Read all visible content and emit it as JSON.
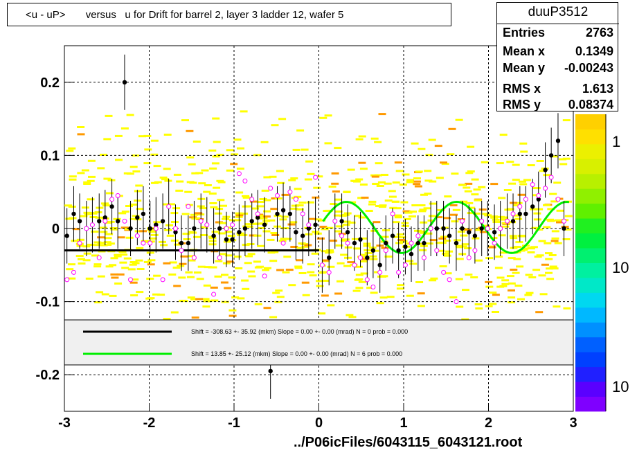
{
  "title": "<u - uP>       versus   u for Drift for barrel 2, layer 3 ladder 12, wafer 5",
  "stats": {
    "name": "duuP3512",
    "rows": [
      {
        "label": "Entries",
        "value": "2763"
      },
      {
        "label": "Mean x",
        "value": "0.1349"
      },
      {
        "label": "Mean y",
        "value": "-0.00243"
      },
      {
        "label": "RMS x",
        "value": "1.613"
      },
      {
        "label": "RMS y",
        "value": "0.08374"
      }
    ]
  },
  "footer": "../P06icFiles/6043115_6043121.root",
  "colorbar_labels": [
    "1",
    "10",
    "10"
  ],
  "legend": [
    {
      "text": "Shift =  -308.63 +- 35.92 (mkm) Slope =     0.00 +- 0.00 (mrad)  N = 0 prob = 0.000",
      "color": "#000000"
    },
    {
      "text": "Shift =    13.85 +- 25.12 (mkm) Slope =     0.00 +- 0.00 (mrad)  N = 6 prob = 0.000",
      "color": "#00ee00"
    }
  ],
  "chart_data": {
    "type": "scatter",
    "title": "<u - uP>       versus   u for Drift for barrel 2, layer 3 ladder 12, wafer 5",
    "xlabel": "",
    "ylabel": "",
    "xlim": [
      -3,
      3
    ],
    "ylim": [
      -0.25,
      0.25
    ],
    "x_ticks": [
      -3,
      -2,
      -1,
      0,
      1,
      2,
      3
    ],
    "y_ticks": [
      -0.2,
      -0.1,
      0,
      0.1,
      0.2
    ],
    "grid": true,
    "colors": {
      "heat_low": "#ffff00",
      "heat_mid": "#ff9900",
      "mean": "#000000",
      "median": "#ff00ff",
      "fit": "#00ee00",
      "fit_flat": "#000000"
    },
    "series": [
      {
        "kind": "mean",
        "x": [
          -2.97,
          -2.89,
          -2.82,
          -2.74,
          -2.67,
          -2.59,
          -2.52,
          -2.44,
          -2.37,
          -2.29,
          -2.22,
          -2.14,
          -2.07,
          -1.99,
          -1.92,
          -1.84,
          -1.77,
          -1.69,
          -1.62,
          -1.54,
          -1.47,
          -1.39,
          -1.32,
          -1.24,
          -1.17,
          -1.09,
          -1.02,
          -0.94,
          -0.87,
          -0.79,
          -0.72,
          -0.64,
          -0.57,
          -0.49,
          -0.42,
          -0.34,
          -0.27,
          -0.19,
          -0.12,
          -0.04,
          0.04,
          0.12,
          0.19,
          0.27,
          0.34,
          0.42,
          0.49,
          0.57,
          0.64,
          0.72,
          0.79,
          0.87,
          0.94,
          1.02,
          1.09,
          1.17,
          1.24,
          1.32,
          1.39,
          1.47,
          1.54,
          1.62,
          1.69,
          1.77,
          1.84,
          1.92,
          1.99,
          2.07,
          2.14,
          2.22,
          2.29,
          2.37,
          2.44,
          2.52,
          2.59,
          2.67,
          2.74,
          2.82,
          2.89
        ],
        "y": [
          -0.01,
          0.02,
          0.01,
          0.0,
          0.005,
          0.01,
          0.015,
          0.03,
          0.01,
          0.2,
          0.0,
          0.015,
          0.02,
          0.0,
          0.005,
          0.01,
          0.03,
          -0.005,
          -0.02,
          -0.02,
          0.0,
          0.01,
          0.005,
          -0.01,
          0.0,
          -0.015,
          -0.015,
          -0.005,
          0.0,
          0.01,
          0.015,
          0.005,
          -0.195,
          0.02,
          0.025,
          0.02,
          -0.005,
          -0.01,
          0.0,
          0.005,
          -0.05,
          -0.04,
          0.01,
          0.01,
          -0.005,
          -0.02,
          -0.015,
          -0.04,
          -0.03,
          -0.05,
          -0.02,
          -0.01,
          -0.03,
          -0.025,
          -0.035,
          -0.02,
          -0.02,
          0.0,
          0.0,
          0.0,
          -0.01,
          -0.02,
          0.0,
          -0.005,
          -0.01,
          0.0,
          0.0,
          -0.005,
          0.0,
          0.01,
          0.01,
          0.02,
          0.02,
          0.03,
          0.04,
          0.08,
          0.1,
          0.12,
          0.0
        ]
      },
      {
        "kind": "median",
        "x": [
          -2.97,
          -2.89,
          -2.82,
          -2.74,
          -2.67,
          -2.59,
          -2.52,
          -2.44,
          -2.37,
          -2.29,
          -2.22,
          -2.14,
          -2.07,
          -1.99,
          -1.92,
          -1.84,
          -1.77,
          -1.69,
          -1.62,
          -1.54,
          -1.47,
          -1.39,
          -1.32,
          -1.24,
          -1.17,
          -1.09,
          -1.02,
          -0.94,
          -0.87,
          -0.79,
          -0.72,
          -0.64,
          -0.57,
          -0.49,
          -0.42,
          -0.34,
          -0.27,
          -0.19,
          -0.12,
          -0.04,
          0.04,
          0.12,
          0.19,
          0.27,
          0.34,
          0.42,
          0.49,
          0.57,
          0.64,
          0.72,
          0.79,
          0.87,
          0.94,
          1.02,
          1.09,
          1.17,
          1.24,
          1.32,
          1.39,
          1.47,
          1.54,
          1.62,
          1.69,
          1.77,
          1.84,
          1.92,
          1.99,
          2.07,
          2.14,
          2.22,
          2.29,
          2.37,
          2.44,
          2.52,
          2.59,
          2.67,
          2.74,
          2.82,
          2.89
        ],
        "y": [
          -0.07,
          -0.06,
          -0.02,
          0.0,
          0.005,
          -0.04,
          0.01,
          0.04,
          0.045,
          0.01,
          -0.07,
          -0.01,
          -0.02,
          -0.02,
          0.0,
          -0.07,
          0.03,
          0.0,
          -0.03,
          0.03,
          -0.04,
          0.01,
          0.005,
          -0.09,
          -0.04,
          0.0,
          0.005,
          0.075,
          0.065,
          0.04,
          0.02,
          -0.065,
          0.055,
          0.045,
          -0.02,
          0.05,
          0.04,
          0.02,
          0.005,
          0.07,
          -0.05,
          -0.06,
          0.01,
          -0.01,
          -0.02,
          -0.05,
          -0.04,
          -0.07,
          -0.08,
          -0.06,
          -0.03,
          0.02,
          -0.06,
          -0.05,
          -0.02,
          -0.01,
          -0.04,
          0.0,
          -0.03,
          -0.06,
          -0.07,
          -0.1,
          0.01,
          -0.04,
          -0.03,
          0.01,
          0.0,
          -0.02,
          0.0,
          0.01,
          0.02,
          0.03,
          0.04,
          0.06,
          0.045,
          0.055,
          0.07,
          0.04,
          0.01
        ]
      }
    ]
  }
}
